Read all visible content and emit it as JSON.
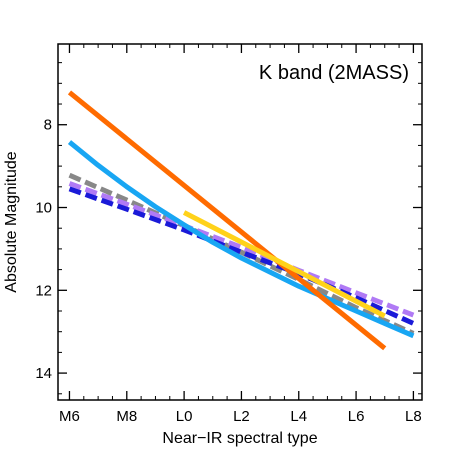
{
  "chart_data": {
    "type": "line",
    "title": "K band (2MASS)",
    "xlabel": "Near−IR spectral type",
    "ylabel": "Absolute Magnitude",
    "xlim": [
      15.6,
      28.3
    ],
    "ylim": [
      14.65,
      6.05
    ],
    "x_ticks": [
      {
        "value": 16,
        "label": "M6"
      },
      {
        "value": 18,
        "label": "M8"
      },
      {
        "value": 20,
        "label": "L0"
      },
      {
        "value": 22,
        "label": "L2"
      },
      {
        "value": 24,
        "label": "L4"
      },
      {
        "value": 26,
        "label": "L6"
      },
      {
        "value": 28,
        "label": "L8"
      }
    ],
    "y_ticks": [
      {
        "value": 8,
        "label": "8"
      },
      {
        "value": 10,
        "label": "10"
      },
      {
        "value": 12,
        "label": "12"
      },
      {
        "value": 14,
        "label": "14"
      }
    ],
    "y_minor_step": 0.5,
    "x_minor_step": 0.5,
    "grid": false,
    "series": [
      {
        "color": "#888888",
        "dashed": true,
        "points": [
          [
            16,
            9.22
          ],
          [
            18,
            9.82
          ],
          [
            20,
            10.44
          ],
          [
            22,
            11.08
          ],
          [
            24,
            11.74
          ],
          [
            26,
            12.42
          ],
          [
            28,
            13.04
          ]
        ]
      },
      {
        "color": "#b07af5",
        "dashed": true,
        "points": [
          [
            16,
            9.42
          ],
          [
            18,
            9.92
          ],
          [
            20,
            10.44
          ],
          [
            22,
            10.96
          ],
          [
            24,
            11.52
          ],
          [
            26,
            12.06
          ],
          [
            28,
            12.6
          ]
        ]
      },
      {
        "color": "#1a1ad8",
        "dashed": true,
        "points": [
          [
            16,
            9.55
          ],
          [
            18,
            10.04
          ],
          [
            20,
            10.54
          ],
          [
            22,
            11.08
          ],
          [
            24,
            11.6
          ],
          [
            26,
            12.18
          ],
          [
            28,
            12.8
          ]
        ]
      },
      {
        "color": "#18a6f3",
        "dashed": false,
        "points": [
          [
            16,
            8.42
          ],
          [
            17,
            8.98
          ],
          [
            18,
            9.5
          ],
          [
            19,
            9.98
          ],
          [
            20,
            10.42
          ],
          [
            21,
            10.84
          ],
          [
            22,
            11.22
          ],
          [
            23,
            11.56
          ],
          [
            24,
            11.9
          ],
          [
            25,
            12.2
          ],
          [
            26,
            12.5
          ],
          [
            27,
            12.8
          ],
          [
            28,
            13.1
          ]
        ]
      },
      {
        "color": "#ff6b00",
        "dashed": false,
        "points": [
          [
            16,
            7.22
          ],
          [
            27,
            13.4
          ]
        ]
      },
      {
        "color": "#ffd21a",
        "dashed": false,
        "points": [
          [
            20,
            10.12
          ],
          [
            27,
            12.62
          ]
        ]
      }
    ]
  }
}
